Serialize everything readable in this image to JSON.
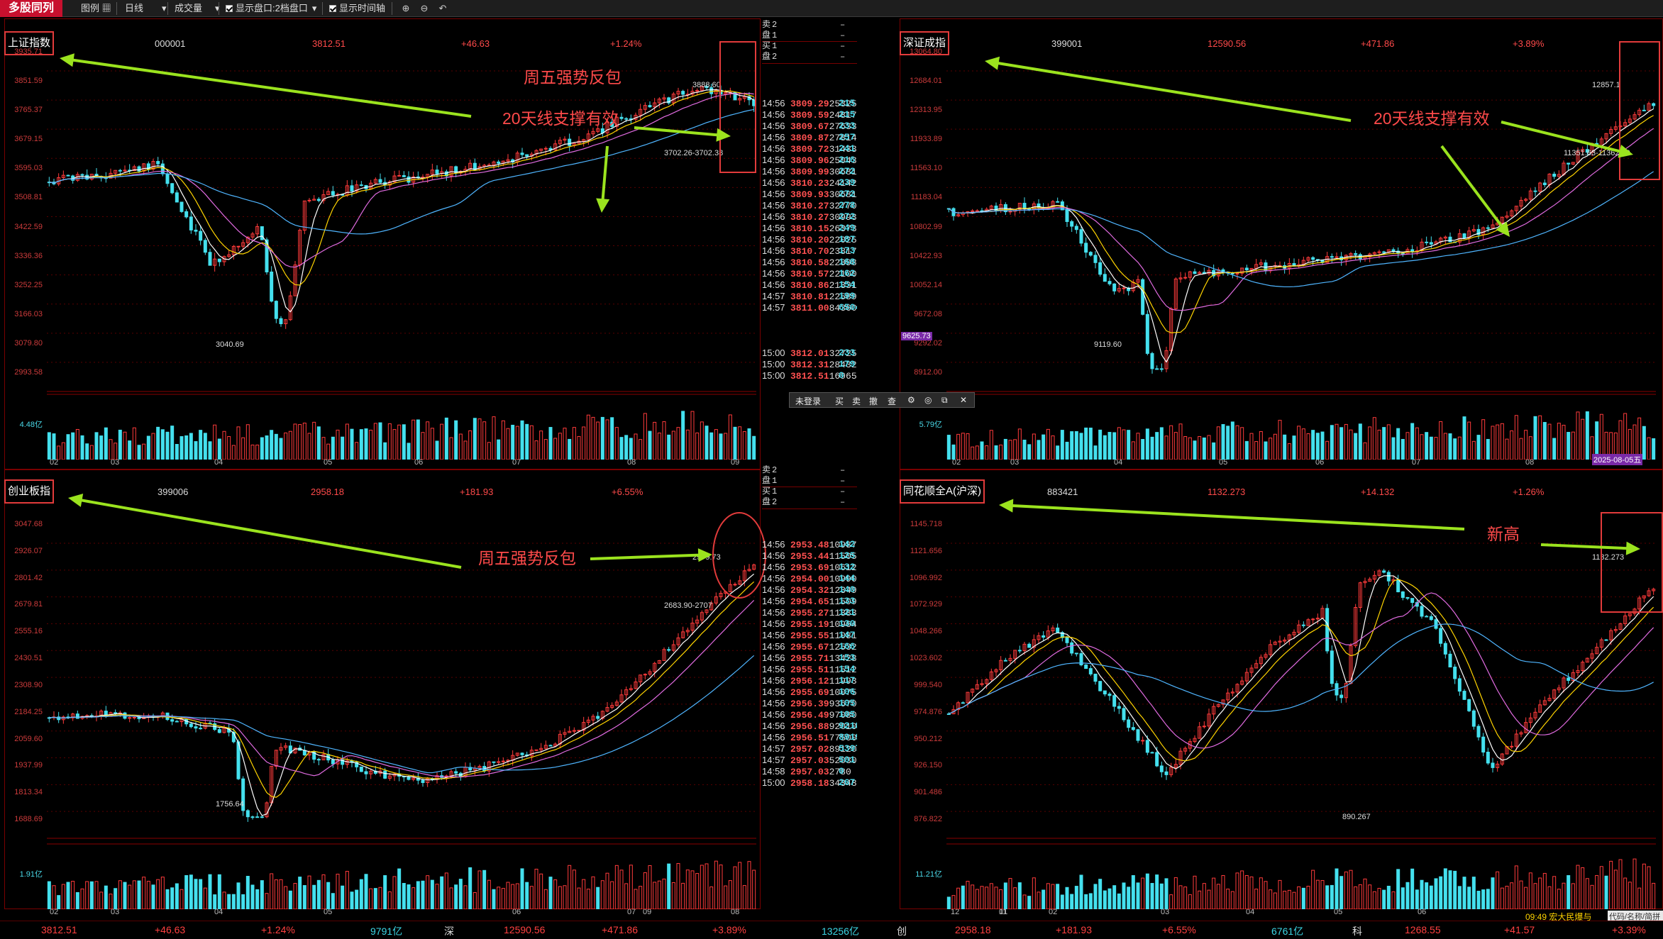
{
  "toolbar": {
    "active_tab": "多股同列",
    "items": [
      "图例",
      "日线",
      "成交量",
      "显示盘口:2档盘口",
      "显示时间轴"
    ]
  },
  "panels": [
    {
      "title": "上证指数",
      "code": "000001",
      "price": "3812.51",
      "change": "+46.63",
      "pct": "+1.24%",
      "y_labels": [
        "3935.71",
        "3851.59",
        "3765.37",
        "3679.15",
        "3595.03",
        "3508.81",
        "3422.59",
        "3336.36",
        "3252.25",
        "3166.03",
        "3079.80",
        "2993.58"
      ],
      "vol_label": "4.48亿",
      "x_labels": [
        "02",
        "03",
        "04",
        "05",
        "06",
        "07",
        "08",
        "09"
      ],
      "low_label": "3040.69",
      "high_label": "3888.60",
      "last_label": "3702.26-3702.38",
      "annotations": [
        "周五强势反包",
        "20天线支撑有效"
      ]
    },
    {
      "title": "深证成指",
      "code": "399001",
      "price": "12590.56",
      "change": "+471.86",
      "pct": "+3.89%",
      "y_labels": [
        "13064.80",
        "12684.01",
        "12313.95",
        "11933.89",
        "11563.10",
        "11183.04",
        "10802.99",
        "10422.93",
        "10052.14",
        "9672.08",
        "9292.02",
        "8912.00"
      ],
      "vol_label": "5.79亿",
      "x_labels": [
        "02",
        "03",
        "04",
        "05",
        "06",
        "07",
        "08"
      ],
      "low_label": "9119.60",
      "high_label": "12857.1",
      "last_label": "11351.63-11362.90",
      "cursor_label": "9625.73",
      "date_label": "2025-08-05五",
      "annotations": [
        "20天线支撑有效"
      ]
    },
    {
      "title": "创业板指",
      "code": "399006",
      "price": "2958.18",
      "change": "+181.93",
      "pct": "+6.55%",
      "y_labels": [
        "3047.68",
        "2926.07",
        "2801.42",
        "2679.81",
        "2555.16",
        "2430.51",
        "2308.90",
        "2184.25",
        "2059.60",
        "1937.99",
        "1813.34",
        "1688.69"
      ],
      "vol_label": "1.91亿",
      "x_labels": [
        "02",
        "03",
        "04",
        "05",
        "06",
        "07",
        "08",
        "09"
      ],
      "low_label": "1756.64",
      "high_label": "2979.73",
      "last_label": "2683.90-2707",
      "annotations": [
        "周五强势反包"
      ]
    },
    {
      "title": "同花顺全A(沪深)",
      "code": "883421",
      "price": "1132.273",
      "change": "+14.132",
      "pct": "+1.26%",
      "y_labels": [
        "1145.718",
        "1121.656",
        "1096.992",
        "1072.929",
        "1048.266",
        "1023.602",
        "999.540",
        "974.876",
        "950.212",
        "926.150",
        "901.486",
        "876.822"
      ],
      "vol_label": "11.21亿",
      "x_labels": [
        "12",
        "01",
        "02",
        "03",
        "04",
        "05",
        "06"
      ],
      "x_extra": [
        "11"
      ],
      "low_label": "890.267",
      "high_label": "1132.273",
      "annotations": [
        "新高"
      ]
    }
  ],
  "orderbook_top": [
    [
      "卖",
      "2",
      "–"
    ],
    [
      "盘",
      "1",
      "–"
    ],
    [
      "买",
      "1",
      "–"
    ],
    [
      "盘",
      "2",
      "–"
    ]
  ],
  "orderbook_bottom": [
    [
      "卖",
      "2",
      "–"
    ],
    [
      "盘",
      "1",
      "–"
    ],
    [
      "买",
      "1",
      "–"
    ],
    [
      "盘",
      "2",
      "–"
    ]
  ],
  "ticks_top": [
    [
      "14:56",
      "3809.29",
      "253250",
      "215"
    ],
    [
      "14:56",
      "3809.59",
      "248170",
      "215"
    ],
    [
      "14:56",
      "3809.67",
      "276330",
      "233"
    ],
    [
      "14:56",
      "3809.87",
      "278140",
      "257"
    ],
    [
      "14:56",
      "3809.72",
      "314330",
      "241"
    ],
    [
      "14:56",
      "3809.96",
      "250430",
      "216"
    ],
    [
      "14:56",
      "3809.99",
      "306810",
      "272"
    ],
    [
      "14:56",
      "3810.23",
      "241420",
      "239"
    ],
    [
      "14:56",
      "3809.93",
      "306810",
      "272"
    ],
    [
      "14:56",
      "3810.27",
      "327700",
      "278"
    ],
    [
      "14:56",
      "3810.27",
      "309930",
      "272"
    ],
    [
      "14:56",
      "3810.15",
      "263730",
      "249"
    ],
    [
      "14:56",
      "3810.20",
      "220250",
      "187"
    ],
    [
      "14:56",
      "3810.70",
      "238170",
      "173"
    ],
    [
      "14:56",
      "3810.58",
      "228980",
      "168"
    ],
    [
      "14:56",
      "3810.57",
      "221000",
      "162"
    ],
    [
      "14:56",
      "3810.86",
      "213310",
      "154"
    ],
    [
      "14:57",
      "3810.81",
      "225890",
      "199"
    ],
    [
      "14:57",
      "3811.00",
      "84360",
      "6504"
    ]
  ],
  "ticks_top_after": [
    [
      "15:00",
      "3812.01",
      "327252",
      "233"
    ],
    [
      "15:00",
      "3812.31",
      "284328",
      "179"
    ],
    [
      "15:00",
      "3812.51",
      "169655",
      "0"
    ]
  ],
  "ticks_bottom": [
    [
      "14:56",
      "2953.48",
      "109870",
      "142"
    ],
    [
      "14:56",
      "2953.44",
      "115050",
      "125"
    ],
    [
      "14:56",
      "2953.69",
      "106120",
      "132"
    ],
    [
      "14:56",
      "2954.00",
      "109900",
      "144"
    ],
    [
      "14:56",
      "2954.32",
      "123490",
      "140"
    ],
    [
      "14:56",
      "2954.65",
      "115090",
      "133"
    ],
    [
      "14:56",
      "2955.27",
      "113830",
      "121"
    ],
    [
      "14:56",
      "2955.19",
      "109640",
      "130"
    ],
    [
      "14:56",
      "2955.55",
      "110810",
      "147"
    ],
    [
      "14:56",
      "2955.67",
      "125320",
      "166"
    ],
    [
      "14:56",
      "2955.71",
      "134280",
      "153"
    ],
    [
      "14:56",
      "2955.51",
      "115120",
      "154"
    ],
    [
      "14:56",
      "2956.12",
      "119930",
      "117"
    ],
    [
      "14:56",
      "2955.69",
      "100750",
      "106"
    ],
    [
      "14:56",
      "2956.39",
      "93670",
      "105"
    ],
    [
      "14:56",
      "2956.49",
      "97080",
      "105"
    ],
    [
      "14:56",
      "2956.88",
      "92010",
      "9218"
    ],
    [
      "14:56",
      "2956.51",
      "77500",
      "8919"
    ],
    [
      "14:57",
      "2957.02",
      "89120",
      "5397"
    ],
    [
      "14:57",
      "2957.03",
      "52030",
      "501"
    ],
    [
      "14:58",
      "2957.03",
      "2780",
      "0"
    ],
    [
      "15:00",
      "2958.18",
      "343485",
      "267"
    ]
  ],
  "popup": {
    "items": [
      "未登录",
      "买",
      "卖",
      "撤",
      "查"
    ]
  },
  "status": {
    "items": [
      "3812.51",
      "+46.63",
      "+1.24%",
      "9791亿",
      "深",
      "12590.56",
      "+471.86",
      "+3.89%",
      "13256亿",
      "创",
      "2958.18",
      "+181.93",
      "+6.55%",
      "6761亿",
      "科",
      "1268.55",
      "+41.57",
      "+3.39%"
    ],
    "news": "09:49 宏大民爆与",
    "search": "代码/名称/简拼"
  }
}
